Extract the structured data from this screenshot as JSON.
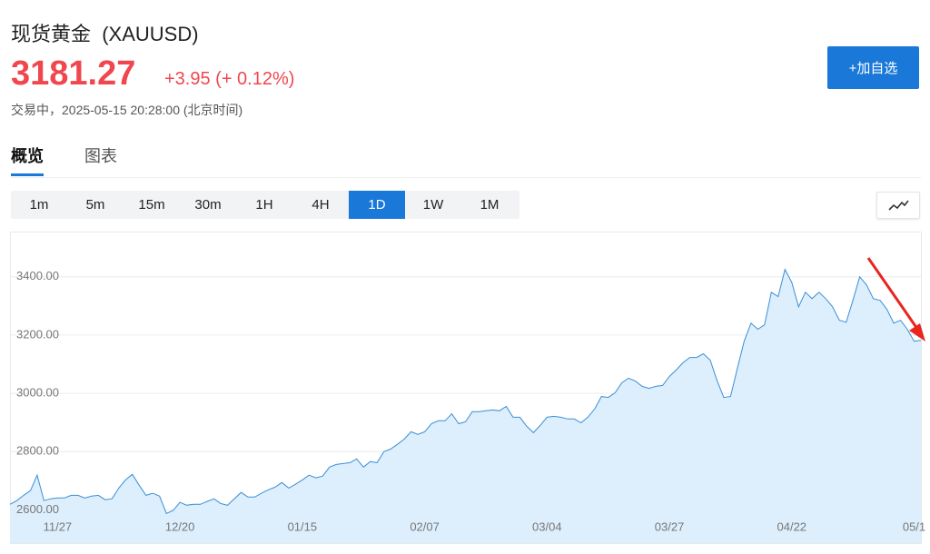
{
  "header": {
    "title": "现货黄金  (XAUUSD)",
    "price": "3181.27",
    "change": "+3.95 (+ 0.12%)",
    "status": "交易中，2025-05-15 20:28:00 (北京时间)"
  },
  "button": "+加自选",
  "tabs": [
    "概览",
    "图表"
  ],
  "active_tab": 0,
  "periods": [
    "1m",
    "5m",
    "15m",
    "30m",
    "1H",
    "4H",
    "1D",
    "1W",
    "1M"
  ],
  "active_period": 6,
  "chart_data": {
    "type": "area",
    "color": "#3b8fd6",
    "fill": "#ddeefc",
    "grid": true,
    "x": [
      0,
      1,
      2,
      3,
      4,
      5,
      6,
      7,
      8,
      9,
      10,
      11,
      12,
      13,
      14,
      15,
      16,
      17,
      18,
      19,
      20,
      21,
      22,
      23,
      24,
      25,
      26,
      27,
      28,
      29,
      30,
      31,
      32,
      33,
      34,
      35,
      36,
      37,
      38,
      39,
      40,
      41,
      42,
      43,
      44,
      45,
      46,
      47,
      48,
      49,
      50,
      51,
      52,
      53,
      54,
      55,
      56,
      57,
      58,
      59,
      60,
      61,
      62,
      63,
      64,
      65,
      66,
      67,
      68,
      69,
      70,
      71,
      72,
      73,
      74,
      75,
      76,
      77,
      78,
      79,
      80,
      81,
      82,
      83,
      84,
      85,
      86,
      87,
      88,
      89,
      90,
      91,
      92,
      93,
      94,
      95,
      96,
      97,
      98,
      99,
      100,
      101,
      102,
      103,
      104,
      105,
      106,
      107,
      108,
      109,
      110,
      111,
      112,
      113,
      114,
      115,
      116,
      117,
      118,
      119,
      120,
      121,
      122,
      123,
      124,
      125,
      126,
      127,
      128,
      129,
      130,
      131,
      132,
      133,
      134
    ],
    "values": [
      2619,
      2632,
      2650,
      2666,
      2719,
      2632,
      2638,
      2641,
      2641,
      2650,
      2650,
      2641,
      2647,
      2650,
      2635,
      2638,
      2675,
      2703,
      2722,
      2685,
      2650,
      2657,
      2647,
      2588,
      2598,
      2626,
      2616,
      2619,
      2619,
      2629,
      2638,
      2622,
      2616,
      2638,
      2660,
      2644,
      2644,
      2657,
      2669,
      2678,
      2694,
      2675,
      2688,
      2703,
      2719,
      2710,
      2716,
      2747,
      2756,
      2759,
      2762,
      2775,
      2747,
      2766,
      2762,
      2800,
      2809,
      2825,
      2843,
      2868,
      2859,
      2868,
      2896,
      2906,
      2906,
      2930,
      2896,
      2902,
      2937,
      2937,
      2940,
      2943,
      2940,
      2955,
      2918,
      2918,
      2887,
      2865,
      2890,
      2918,
      2921,
      2918,
      2912,
      2912,
      2899,
      2918,
      2946,
      2989,
      2986,
      3002,
      3036,
      3052,
      3042,
      3024,
      3017,
      3024,
      3027,
      3058,
      3080,
      3105,
      3123,
      3123,
      3136,
      3114,
      3045,
      2986,
      2989,
      3086,
      3179,
      3241,
      3220,
      3235,
      3347,
      3332,
      3425,
      3381,
      3297,
      3347,
      3325,
      3347,
      3325,
      3297,
      3251,
      3244,
      3319,
      3400,
      3372,
      3325,
      3319,
      3288,
      3241,
      3251,
      3220,
      3179,
      3182
    ],
    "xlim": [
      0,
      134
    ],
    "xticks": [
      {
        "value": 7,
        "label": "11/27"
      },
      {
        "value": 25,
        "label": "12/20"
      },
      {
        "value": 43,
        "label": "01/15"
      },
      {
        "value": 61,
        "label": "02/07"
      },
      {
        "value": 79,
        "label": "03/04"
      },
      {
        "value": 97,
        "label": "03/27"
      },
      {
        "value": 115,
        "label": "04/22"
      },
      {
        "value": 133,
        "label": "05/1"
      }
    ],
    "ylim": [
      2486,
      3552
    ],
    "yticks": [
      {
        "value": 2600,
        "label": "2600.00"
      },
      {
        "value": 2800,
        "label": "2800.00"
      },
      {
        "value": 3000,
        "label": "3000.00"
      },
      {
        "value": 3200,
        "label": "3200.00"
      },
      {
        "value": 3400,
        "label": "3400.00"
      }
    ]
  }
}
